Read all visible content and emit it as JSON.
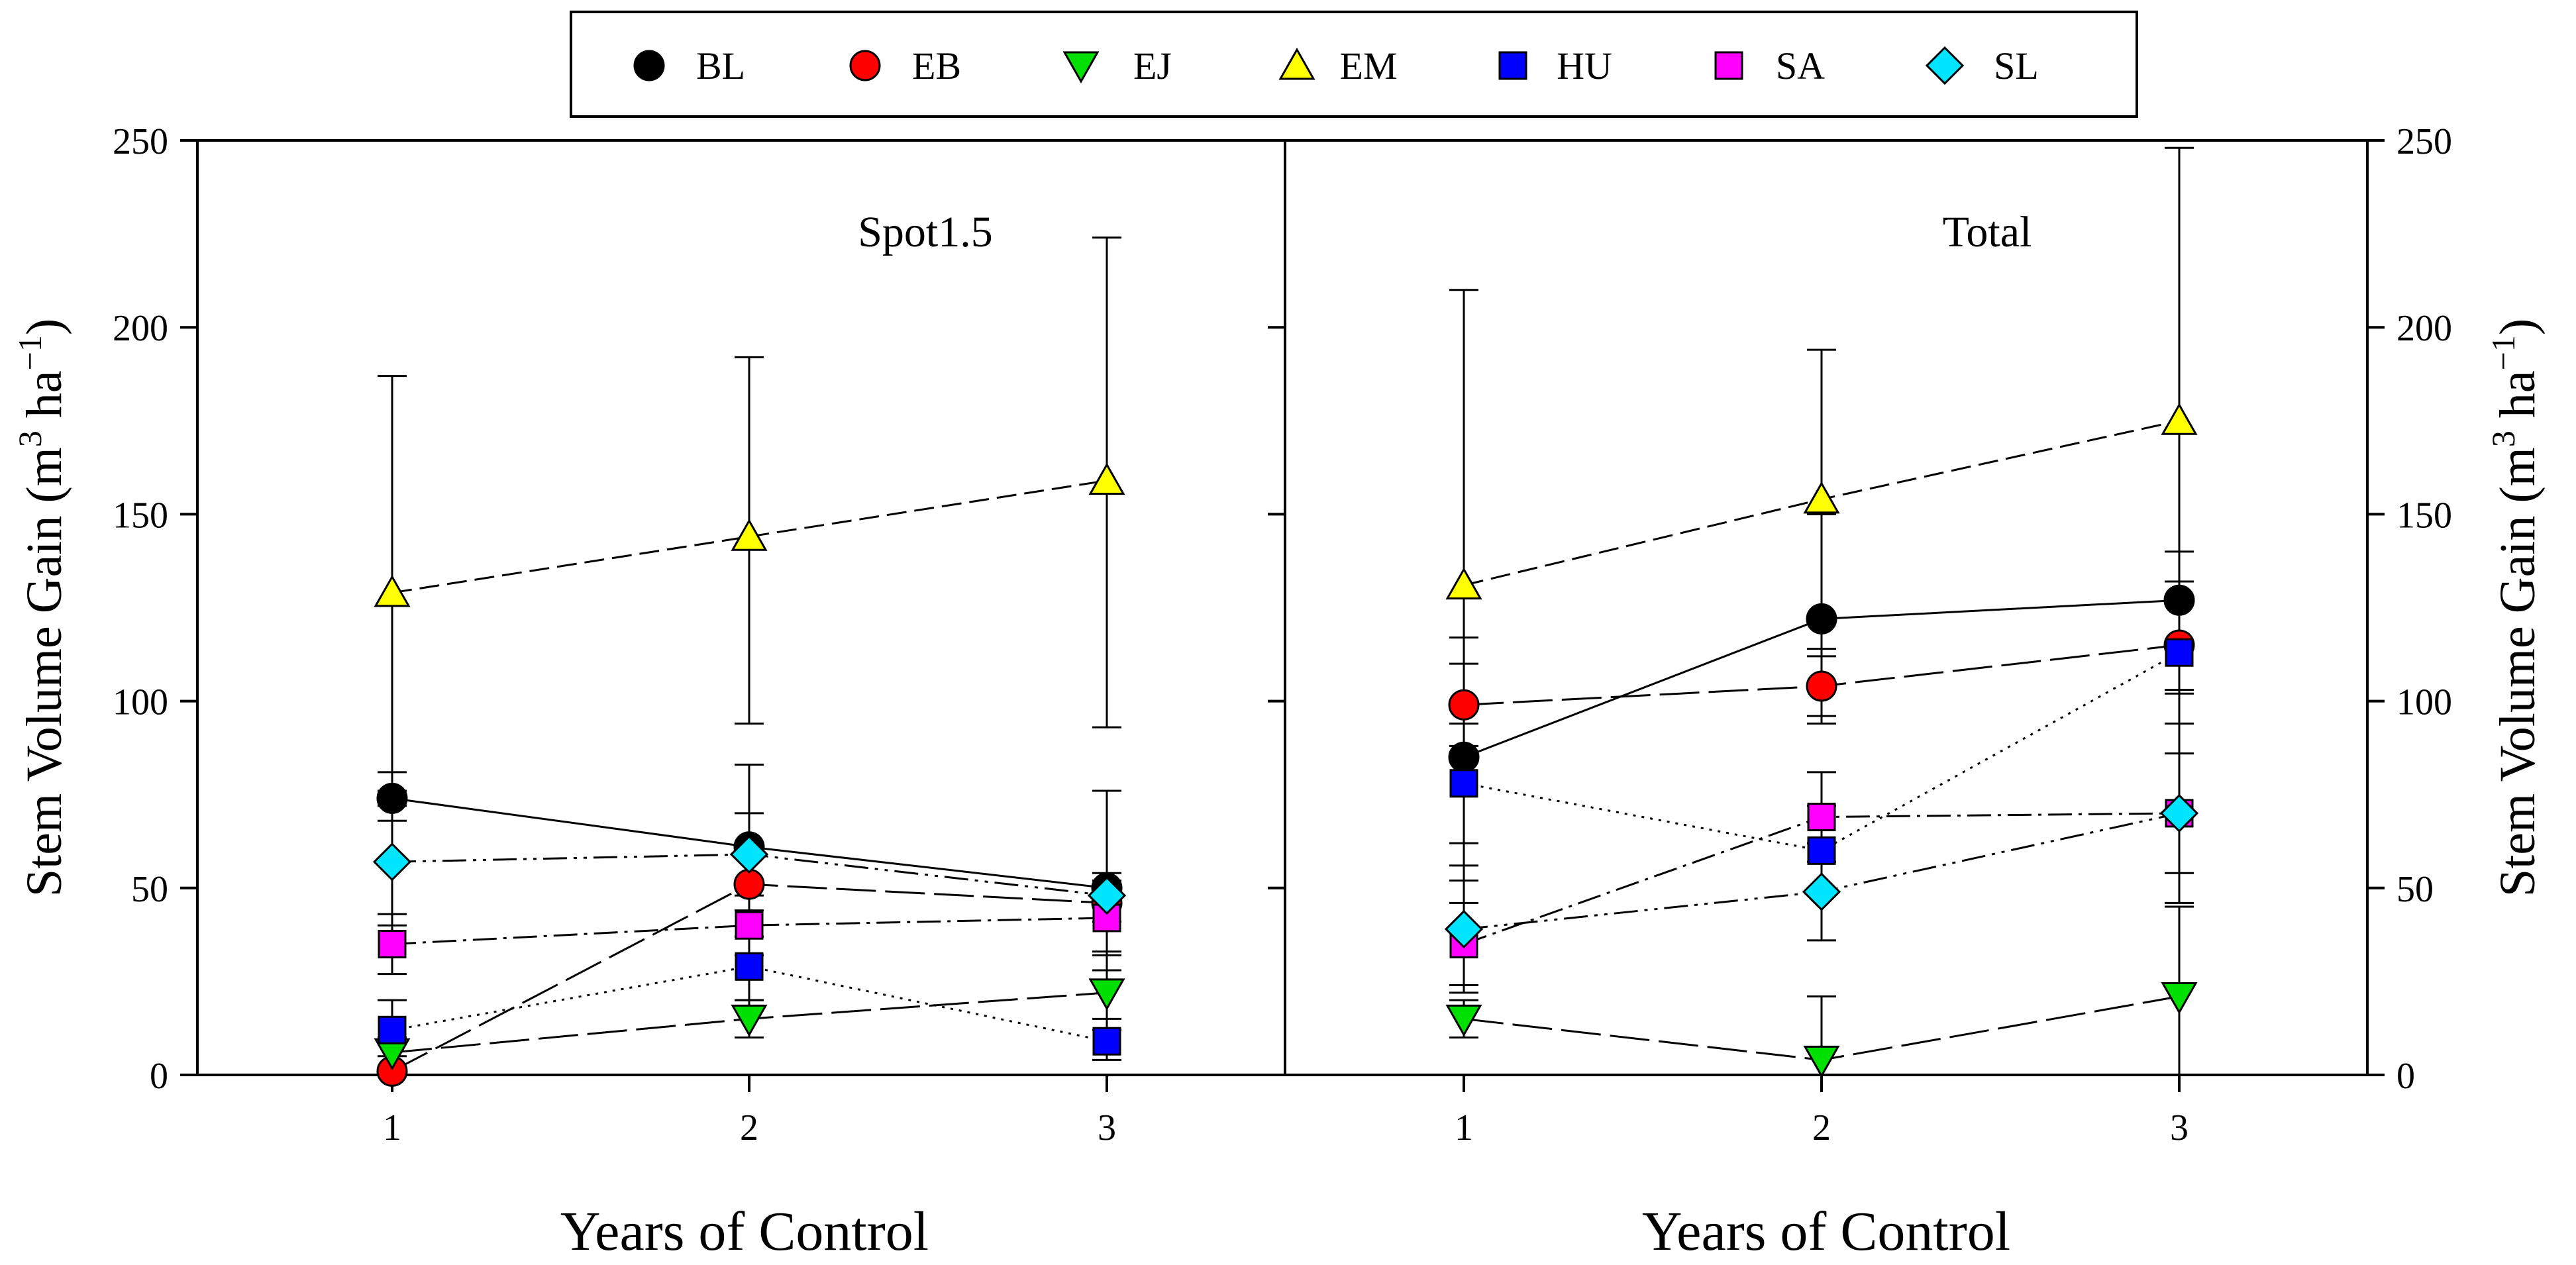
{
  "chart_data": [
    {
      "type": "scatter",
      "title": "Spot1.5",
      "xlabel": "Years of Control",
      "ylabel": "Stem Volume Gain (m3 ha−1)",
      "ylabel_parts": {
        "base": "Stem Volume Gain (m",
        "sup1": "3",
        "mid": " ha",
        "sup2": "−1",
        "end": ")"
      },
      "x": [
        1,
        2,
        3
      ],
      "x_ticks": [
        "1",
        "2",
        "3"
      ],
      "ylim": [
        0,
        250
      ],
      "y_ticks": [
        "0",
        "50",
        "100",
        "150",
        "200",
        "250"
      ],
      "y_axis_side": "left",
      "series": [
        {
          "name": "BL",
          "values": [
            74,
            61,
            50
          ],
          "error_upper": [
            81,
            70,
            54
          ],
          "error_lower": [
            68,
            52,
            45
          ]
        },
        {
          "name": "EB",
          "values": [
            1,
            51,
            46
          ],
          "error_upper": [
            null,
            58,
            51
          ],
          "error_lower": [
            null,
            44,
            41
          ]
        },
        {
          "name": "EJ",
          "values": [
            6,
            15,
            22
          ],
          "error_upper": [
            10,
            20,
            32
          ],
          "error_lower": [
            2,
            10,
            12
          ]
        },
        {
          "name": "EM",
          "values": [
            129,
            144,
            159
          ],
          "error_upper": [
            187,
            192,
            224
          ],
          "error_lower": [
            72,
            94,
            93
          ]
        },
        {
          "name": "HU",
          "values": [
            12,
            29,
            9
          ],
          "error_upper": [
            20,
            37,
            15
          ],
          "error_lower": [
            5,
            20,
            4
          ]
        },
        {
          "name": "SA",
          "values": [
            35,
            40,
            42
          ],
          "error_upper": [
            43,
            48,
            52
          ],
          "error_lower": [
            27,
            32,
            33
          ]
        },
        {
          "name": "SL",
          "values": [
            57,
            59,
            48
          ],
          "error_upper": [
            76,
            83,
            76
          ],
          "error_lower": [
            40,
            37,
            28
          ]
        }
      ]
    },
    {
      "type": "scatter",
      "title": "Total",
      "xlabel": "Years of Control",
      "ylabel": "Stem Volume Gain (m3 ha−1)",
      "ylabel_parts": {
        "base": "Stem Volume Gain (m",
        "sup1": "3",
        "mid": " ha",
        "sup2": "−1",
        "end": ")"
      },
      "x": [
        1,
        2,
        3
      ],
      "x_ticks": [
        "1",
        "2",
        "3"
      ],
      "ylim": [
        0,
        250
      ],
      "y_ticks": [
        "0",
        "50",
        "100",
        "150",
        "200",
        "250"
      ],
      "y_axis_side": "right",
      "series": [
        {
          "name": "BL",
          "values": [
            85,
            122,
            127
          ],
          "error_upper": [
            117,
            150,
            140
          ],
          "error_lower": [
            52,
            94,
            114
          ]
        },
        {
          "name": "EB",
          "values": [
            99,
            104,
            115
          ],
          "error_upper": [
            110,
            112,
            127
          ],
          "error_lower": [
            88,
            96,
            103
          ]
        },
        {
          "name": "EJ",
          "values": [
            15,
            4,
            21
          ],
          "error_upper": [
            20,
            21,
            45
          ],
          "error_lower": [
            10,
            0,
            0
          ]
        },
        {
          "name": "EM",
          "values": [
            131,
            154,
            175
          ],
          "error_upper": [
            210,
            194,
            248
          ],
          "error_lower": [
            52,
            114,
            102
          ]
        },
        {
          "name": "HU",
          "values": [
            78,
            60,
            113
          ],
          "error_upper": [
            94,
            72,
            132
          ],
          "error_lower": [
            62,
            48,
            94
          ]
        },
        {
          "name": "SA",
          "values": [
            35,
            69,
            70
          ],
          "error_upper": [
            46,
            81,
            86
          ],
          "error_lower": [
            24,
            57,
            54
          ]
        },
        {
          "name": "SL",
          "values": [
            39,
            49,
            70
          ],
          "error_upper": [
            56,
            62,
            94
          ],
          "error_lower": [
            22,
            36,
            46
          ]
        }
      ]
    }
  ],
  "legend": {
    "position": "top-center",
    "entries": [
      {
        "name": "BL",
        "marker": "circle",
        "color": "#000000"
      },
      {
        "name": "EB",
        "marker": "circle",
        "color": "#ff0000"
      },
      {
        "name": "EJ",
        "marker": "triangle-down",
        "color": "#00e000"
      },
      {
        "name": "EM",
        "marker": "triangle-up",
        "color": "#ffff00"
      },
      {
        "name": "HU",
        "marker": "square",
        "color": "#0000ff"
      },
      {
        "name": "SA",
        "marker": "square",
        "color": "#ff00ff"
      },
      {
        "name": "SL",
        "marker": "diamond",
        "color": "#00e5ff"
      }
    ]
  },
  "line_styles": {
    "BL": "solid",
    "EB": "long-dash",
    "EJ": "long-dash",
    "EM": "dash",
    "HU": "dot",
    "SA": "dash-dot",
    "SL": "dash-dot-dot"
  }
}
